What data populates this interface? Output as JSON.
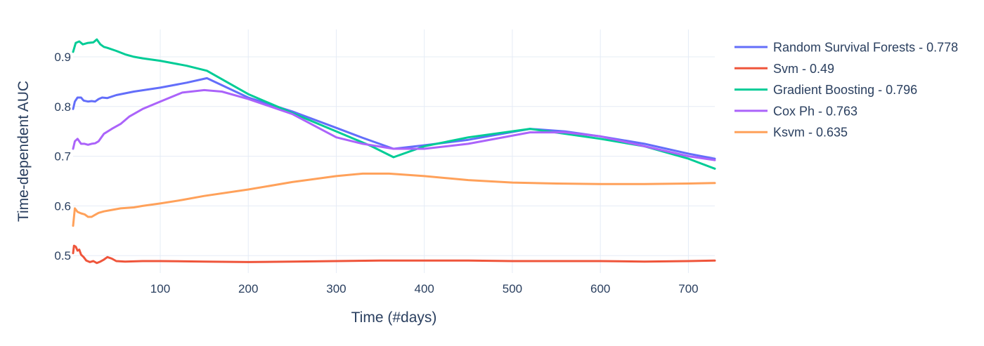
{
  "chart_data": {
    "type": "line",
    "xlabel": "Time (#days)",
    "ylabel": "Time-dependent AUC",
    "xlim": [
      1,
      730
    ],
    "ylim": [
      0.465,
      0.955
    ],
    "x_ticks": [
      100,
      200,
      300,
      400,
      500,
      600,
      700
    ],
    "y_ticks": [
      0.5,
      0.6,
      0.7,
      0.8,
      0.9
    ],
    "grid": true,
    "legend_position": "right",
    "series": [
      {
        "name": "Random Survival Forests - 0.778",
        "color": "#636efa",
        "x": [
          1,
          3,
          6,
          10,
          13,
          18,
          22,
          26,
          30,
          34,
          40,
          50,
          70,
          100,
          130,
          153,
          200,
          250,
          300,
          330,
          365,
          400,
          450,
          520,
          560,
          600,
          650,
          700,
          730
        ],
        "y": [
          0.795,
          0.81,
          0.818,
          0.818,
          0.812,
          0.81,
          0.811,
          0.81,
          0.815,
          0.818,
          0.817,
          0.823,
          0.83,
          0.838,
          0.848,
          0.857,
          0.818,
          0.79,
          0.757,
          0.737,
          0.715,
          0.722,
          0.733,
          0.755,
          0.75,
          0.74,
          0.725,
          0.705,
          0.695
        ]
      },
      {
        "name": "Svm - 0.49",
        "color": "#ef553b",
        "x": [
          1,
          2,
          4,
          6,
          8,
          10,
          13,
          16,
          20,
          24,
          28,
          32,
          36,
          40,
          45,
          50,
          60,
          80,
          100,
          150,
          200,
          250,
          300,
          350,
          400,
          450,
          500,
          550,
          600,
          650,
          700,
          730
        ],
        "y": [
          0.505,
          0.52,
          0.518,
          0.51,
          0.512,
          0.502,
          0.497,
          0.49,
          0.487,
          0.489,
          0.485,
          0.488,
          0.492,
          0.497,
          0.494,
          0.489,
          0.488,
          0.489,
          0.489,
          0.488,
          0.487,
          0.488,
          0.489,
          0.49,
          0.49,
          0.49,
          0.489,
          0.489,
          0.489,
          0.488,
          0.489,
          0.49
        ]
      },
      {
        "name": "Gradient Boosting - 0.796",
        "color": "#00cc96",
        "x": [
          1,
          4,
          8,
          12,
          18,
          24,
          28,
          32,
          36,
          40,
          50,
          60,
          70,
          80,
          100,
          130,
          153,
          200,
          250,
          300,
          340,
          365,
          400,
          450,
          520,
          560,
          600,
          650,
          700,
          730
        ],
        "y": [
          0.91,
          0.928,
          0.931,
          0.925,
          0.928,
          0.929,
          0.935,
          0.925,
          0.92,
          0.918,
          0.912,
          0.905,
          0.9,
          0.897,
          0.892,
          0.882,
          0.872,
          0.825,
          0.787,
          0.75,
          0.72,
          0.698,
          0.72,
          0.738,
          0.755,
          0.745,
          0.735,
          0.72,
          0.695,
          0.675
        ]
      },
      {
        "name": "Cox Ph - 0.763",
        "color": "#ab63fa",
        "x": [
          1,
          3,
          6,
          10,
          14,
          18,
          22,
          26,
          30,
          36,
          45,
          55,
          65,
          80,
          100,
          125,
          150,
          170,
          200,
          250,
          300,
          330,
          365,
          400,
          450,
          520,
          560,
          600,
          650,
          700,
          730
        ],
        "y": [
          0.715,
          0.73,
          0.735,
          0.725,
          0.725,
          0.723,
          0.725,
          0.726,
          0.73,
          0.745,
          0.755,
          0.765,
          0.78,
          0.795,
          0.81,
          0.828,
          0.833,
          0.83,
          0.815,
          0.785,
          0.738,
          0.725,
          0.715,
          0.715,
          0.725,
          0.748,
          0.748,
          0.74,
          0.72,
          0.7,
          0.692
        ]
      },
      {
        "name": "Ksvm - 0.635",
        "color": "#ffa15a",
        "x": [
          1,
          3,
          6,
          10,
          14,
          18,
          22,
          26,
          30,
          36,
          45,
          55,
          70,
          80,
          100,
          125,
          150,
          200,
          250,
          300,
          330,
          360,
          400,
          450,
          500,
          550,
          600,
          650,
          700,
          730
        ],
        "y": [
          0.56,
          0.595,
          0.588,
          0.585,
          0.583,
          0.578,
          0.578,
          0.582,
          0.586,
          0.589,
          0.592,
          0.595,
          0.597,
          0.6,
          0.605,
          0.612,
          0.62,
          0.633,
          0.648,
          0.66,
          0.665,
          0.665,
          0.66,
          0.652,
          0.647,
          0.645,
          0.644,
          0.644,
          0.645,
          0.646
        ]
      }
    ]
  }
}
